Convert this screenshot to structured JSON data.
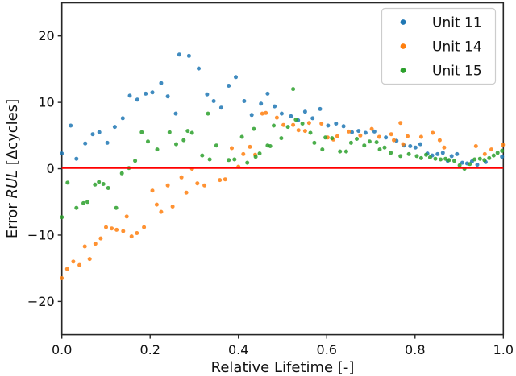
{
  "figure": {
    "background": "#ffffff"
  },
  "chart_data": {
    "type": "scatter",
    "title": "",
    "xlabel": "Relative Lifetime [-]",
    "ylabel": "Error RUL [Δcycles]",
    "ylabel_parts": [
      "Error ",
      "RUL",
      " [Δcycles]"
    ],
    "xlim": [
      0.0,
      1.0
    ],
    "ylim": [
      -25,
      25
    ],
    "grid": false,
    "legend_position": "upper right",
    "marker": "dot",
    "x_axis": {
      "tick_values": [
        0.0,
        0.2,
        0.4,
        0.6,
        0.8,
        1.0
      ],
      "tick_labels": [
        "0.0",
        "0.2",
        "0.4",
        "0.6",
        "0.8",
        "1.0"
      ]
    },
    "y_axis": {
      "tick_values": [
        -20,
        -10,
        0,
        10,
        20
      ],
      "tick_labels": [
        "−20",
        "−10",
        "0",
        "10",
        "20"
      ]
    },
    "zero_line": {
      "y": 0,
      "color": "#ff0000"
    },
    "series": [
      {
        "name": "Unit 11",
        "color": "#1f77b4",
        "points": [
          [
            0.0,
            2.3
          ],
          [
            0.02,
            6.5
          ],
          [
            0.033,
            1.5
          ],
          [
            0.053,
            3.8
          ],
          [
            0.07,
            5.2
          ],
          [
            0.085,
            5.5
          ],
          [
            0.103,
            3.9
          ],
          [
            0.12,
            6.3
          ],
          [
            0.138,
            7.6
          ],
          [
            0.154,
            11.0
          ],
          [
            0.171,
            10.4
          ],
          [
            0.19,
            11.3
          ],
          [
            0.205,
            11.5
          ],
          [
            0.225,
            12.9
          ],
          [
            0.24,
            10.9
          ],
          [
            0.258,
            8.3
          ],
          [
            0.266,
            17.2
          ],
          [
            0.288,
            17.0
          ],
          [
            0.31,
            15.1
          ],
          [
            0.329,
            11.2
          ],
          [
            0.344,
            10.2
          ],
          [
            0.361,
            9.2
          ],
          [
            0.378,
            12.5
          ],
          [
            0.394,
            13.8
          ],
          [
            0.413,
            10.2
          ],
          [
            0.43,
            8.1
          ],
          [
            0.451,
            9.8
          ],
          [
            0.466,
            11.3
          ],
          [
            0.482,
            9.4
          ],
          [
            0.498,
            8.3
          ],
          [
            0.519,
            7.9
          ],
          [
            0.535,
            7.3
          ],
          [
            0.551,
            8.6
          ],
          [
            0.568,
            7.6
          ],
          [
            0.585,
            9.0
          ],
          [
            0.603,
            6.5
          ],
          [
            0.621,
            6.8
          ],
          [
            0.638,
            6.4
          ],
          [
            0.657,
            5.5
          ],
          [
            0.672,
            5.7
          ],
          [
            0.688,
            5.4
          ],
          [
            0.708,
            5.6
          ],
          [
            0.734,
            4.7
          ],
          [
            0.758,
            4.2
          ],
          [
            0.775,
            3.5
          ],
          [
            0.789,
            3.4
          ],
          [
            0.801,
            3.2
          ],
          [
            0.812,
            3.7
          ],
          [
            0.828,
            2.3
          ],
          [
            0.839,
            2.0
          ],
          [
            0.851,
            2.2
          ],
          [
            0.863,
            2.4
          ],
          [
            0.874,
            1.2
          ],
          [
            0.883,
            1.9
          ],
          [
            0.895,
            2.2
          ],
          [
            0.907,
            0.9
          ],
          [
            0.918,
            0.8
          ],
          [
            0.929,
            1.1
          ],
          [
            0.941,
            0.6
          ],
          [
            0.96,
            1.0
          ],
          [
            0.997,
            1.8
          ]
        ]
      },
      {
        "name": "Unit 14",
        "color": "#ff7f0e",
        "points": [
          [
            0.0,
            -16.5
          ],
          [
            0.012,
            -15.1
          ],
          [
            0.026,
            -14.0
          ],
          [
            0.04,
            -14.5
          ],
          [
            0.052,
            -11.7
          ],
          [
            0.063,
            -13.6
          ],
          [
            0.076,
            -11.3
          ],
          [
            0.088,
            -10.5
          ],
          [
            0.1,
            -8.8
          ],
          [
            0.113,
            -9.0
          ],
          [
            0.124,
            -9.2
          ],
          [
            0.139,
            -9.4
          ],
          [
            0.147,
            -7.2
          ],
          [
            0.158,
            -10.2
          ],
          [
            0.17,
            -9.7
          ],
          [
            0.186,
            -8.8
          ],
          [
            0.205,
            -3.3
          ],
          [
            0.215,
            -5.4
          ],
          [
            0.225,
            -6.5
          ],
          [
            0.24,
            -2.5
          ],
          [
            0.251,
            -5.7
          ],
          [
            0.271,
            -1.3
          ],
          [
            0.282,
            -3.6
          ],
          [
            0.295,
            0.0
          ],
          [
            0.307,
            -2.2
          ],
          [
            0.323,
            -2.5
          ],
          [
            0.358,
            -1.7
          ],
          [
            0.37,
            -1.6
          ],
          [
            0.385,
            3.1
          ],
          [
            0.4,
            0.3
          ],
          [
            0.411,
            2.2
          ],
          [
            0.426,
            3.3
          ],
          [
            0.438,
            2.1
          ],
          [
            0.454,
            8.3
          ],
          [
            0.462,
            8.4
          ],
          [
            0.487,
            7.7
          ],
          [
            0.502,
            6.6
          ],
          [
            0.524,
            6.6
          ],
          [
            0.536,
            5.8
          ],
          [
            0.551,
            5.7
          ],
          [
            0.56,
            6.9
          ],
          [
            0.588,
            6.8
          ],
          [
            0.602,
            4.7
          ],
          [
            0.615,
            4.4
          ],
          [
            0.624,
            4.9
          ],
          [
            0.65,
            5.6
          ],
          [
            0.676,
            5.0
          ],
          [
            0.702,
            6.0
          ],
          [
            0.719,
            4.8
          ],
          [
            0.746,
            5.2
          ],
          [
            0.752,
            4.3
          ],
          [
            0.767,
            6.9
          ],
          [
            0.773,
            3.7
          ],
          [
            0.783,
            4.9
          ],
          [
            0.814,
            4.8
          ],
          [
            0.84,
            5.4
          ],
          [
            0.856,
            4.3
          ],
          [
            0.866,
            3.2
          ],
          [
            0.938,
            3.4
          ],
          [
            0.958,
            2.2
          ],
          [
            0.973,
            2.9
          ],
          [
            0.999,
            3.6
          ]
        ]
      },
      {
        "name": "Unit 15",
        "color": "#2ca02c",
        "points": [
          [
            0.0,
            -7.3
          ],
          [
            0.013,
            -2.1
          ],
          [
            0.033,
            -5.9
          ],
          [
            0.049,
            -5.2
          ],
          [
            0.058,
            -5.0
          ],
          [
            0.075,
            -2.4
          ],
          [
            0.084,
            -2.0
          ],
          [
            0.094,
            -2.3
          ],
          [
            0.105,
            -2.9
          ],
          [
            0.123,
            -5.9
          ],
          [
            0.136,
            -0.7
          ],
          [
            0.152,
            0.1
          ],
          [
            0.166,
            1.2
          ],
          [
            0.181,
            5.5
          ],
          [
            0.195,
            4.1
          ],
          [
            0.216,
            2.9
          ],
          [
            0.244,
            5.5
          ],
          [
            0.259,
            3.7
          ],
          [
            0.276,
            4.3
          ],
          [
            0.285,
            5.7
          ],
          [
            0.295,
            5.4
          ],
          [
            0.318,
            2.0
          ],
          [
            0.331,
            8.3
          ],
          [
            0.335,
            1.4
          ],
          [
            0.35,
            3.5
          ],
          [
            0.378,
            1.3
          ],
          [
            0.391,
            1.4
          ],
          [
            0.408,
            4.8
          ],
          [
            0.42,
            0.9
          ],
          [
            0.435,
            6.0
          ],
          [
            0.439,
            1.8
          ],
          [
            0.448,
            2.3
          ],
          [
            0.466,
            3.5
          ],
          [
            0.472,
            3.4
          ],
          [
            0.48,
            6.5
          ],
          [
            0.497,
            4.6
          ],
          [
            0.512,
            6.3
          ],
          [
            0.524,
            12.0
          ],
          [
            0.53,
            7.4
          ],
          [
            0.545,
            6.8
          ],
          [
            0.563,
            5.4
          ],
          [
            0.572,
            3.9
          ],
          [
            0.59,
            2.9
          ],
          [
            0.597,
            4.7
          ],
          [
            0.612,
            4.6
          ],
          [
            0.63,
            2.6
          ],
          [
            0.644,
            2.6
          ],
          [
            0.655,
            3.9
          ],
          [
            0.668,
            4.5
          ],
          [
            0.685,
            3.5
          ],
          [
            0.697,
            4.1
          ],
          [
            0.713,
            4.0
          ],
          [
            0.72,
            2.9
          ],
          [
            0.731,
            3.2
          ],
          [
            0.745,
            2.4
          ],
          [
            0.767,
            1.9
          ],
          [
            0.786,
            2.2
          ],
          [
            0.804,
            1.9
          ],
          [
            0.814,
            1.6
          ],
          [
            0.825,
            2.1
          ],
          [
            0.834,
            1.7
          ],
          [
            0.846,
            1.5
          ],
          [
            0.858,
            1.4
          ],
          [
            0.869,
            1.5
          ],
          [
            0.877,
            1.3
          ],
          [
            0.889,
            1.2
          ],
          [
            0.901,
            0.5
          ],
          [
            0.912,
            0.0
          ],
          [
            0.924,
            0.7
          ],
          [
            0.935,
            1.4
          ],
          [
            0.947,
            1.5
          ],
          [
            0.957,
            1.3
          ],
          [
            0.968,
            1.6
          ],
          [
            0.978,
            2.0
          ],
          [
            0.987,
            2.4
          ],
          [
            0.997,
            2.7
          ]
        ]
      }
    ]
  }
}
